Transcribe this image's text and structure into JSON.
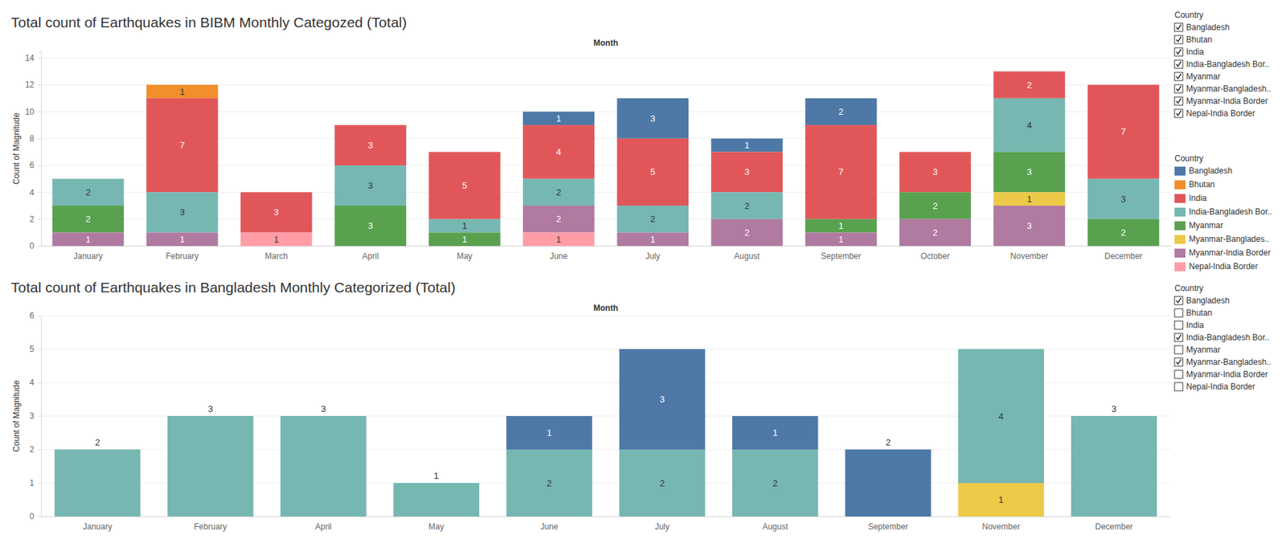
{
  "chart_data": [
    {
      "type": "bar",
      "stacked": true,
      "data_labels": true,
      "grid": true,
      "legend": "right",
      "title": "Total count of Earthquakes in BIBM Monthly Categozed (Total)",
      "x_label": "Month",
      "y_label": "Count of Magnitude",
      "legend_title": "Country",
      "categories": [
        "January",
        "February",
        "March",
        "April",
        "May",
        "June",
        "July",
        "August",
        "September",
        "October",
        "November",
        "December"
      ],
      "ylim": [
        0,
        14.5
      ],
      "yticks": [
        0,
        2,
        4,
        6,
        8,
        10,
        12,
        14
      ],
      "series": [
        {
          "name": "Bangladesh",
          "color": "#4e79a7",
          "values": [
            null,
            null,
            null,
            null,
            null,
            1,
            3,
            1,
            2,
            null,
            null,
            null
          ]
        },
        {
          "name": "Bhutan",
          "color": "#f28e2b",
          "values": [
            null,
            1,
            null,
            null,
            null,
            null,
            null,
            null,
            null,
            null,
            null,
            null
          ]
        },
        {
          "name": "India",
          "color": "#e15759",
          "values": [
            null,
            7,
            3,
            3,
            5,
            4,
            5,
            3,
            7,
            3,
            2,
            7
          ]
        },
        {
          "name": "India-Bangladesh Bor..",
          "color": "#76b7b2",
          "values": [
            2,
            3,
            null,
            3,
            1,
            2,
            2,
            2,
            null,
            null,
            4,
            3
          ]
        },
        {
          "name": "Myanmar",
          "color": "#59a14f",
          "values": [
            2,
            null,
            null,
            3,
            1,
            null,
            null,
            null,
            1,
            2,
            3,
            2
          ]
        },
        {
          "name": "Myanmar-Banglades..",
          "color": "#edc948",
          "values": [
            null,
            null,
            null,
            null,
            null,
            null,
            null,
            null,
            null,
            null,
            1,
            null
          ]
        },
        {
          "name": "Myanmar-India Border",
          "color": "#b07aa1",
          "values": [
            1,
            1,
            null,
            null,
            null,
            2,
            1,
            2,
            1,
            2,
            3,
            null
          ]
        },
        {
          "name": "Nepal-India Border",
          "color": "#ff9da7",
          "values": [
            null,
            null,
            1,
            null,
            null,
            1,
            null,
            null,
            null,
            null,
            null,
            null
          ]
        }
      ]
    },
    {
      "type": "bar",
      "stacked": true,
      "data_labels": true,
      "grid": true,
      "title": "Total count of Earthquakes in Bangladesh Monthly Categorized (Total)",
      "x_label": "Month",
      "y_label": "Count of Magnitude",
      "categories": [
        "January",
        "February",
        "April",
        "May",
        "June",
        "July",
        "August",
        "September",
        "November",
        "December"
      ],
      "ylim": [
        0,
        6
      ],
      "yticks": [
        0,
        1,
        2,
        3,
        4,
        5,
        6
      ],
      "series": [
        {
          "color": "#4e79a7",
          "values": [
            null,
            null,
            null,
            null,
            1,
            3,
            1,
            2,
            null,
            null
          ]
        },
        {
          "color": "#76b7b2",
          "values": [
            2,
            3,
            3,
            1,
            2,
            2,
            2,
            null,
            4,
            3
          ]
        },
        {
          "color": "#edc948",
          "values": [
            null,
            null,
            null,
            null,
            null,
            null,
            null,
            null,
            1,
            null
          ]
        }
      ]
    }
  ],
  "filters": [
    {
      "title": "Country",
      "items": [
        "Bangladesh",
        "Bhutan",
        "India",
        "India-Bangladesh Bor..",
        "Myanmar",
        "Myanmar-Bangladesh..",
        "Myanmar-India Border",
        "Nepal-India Border"
      ],
      "checked": [
        true,
        true,
        true,
        true,
        true,
        true,
        true,
        true
      ]
    },
    {
      "title": "Country",
      "items": [
        "Bangladesh",
        "Bhutan",
        "India",
        "India-Bangladesh Bor..",
        "Myanmar",
        "Myanmar-Bangladesh..",
        "Myanmar-India Border",
        "Nepal-India Border"
      ],
      "checked": [
        true,
        false,
        false,
        true,
        false,
        true,
        false,
        false
      ]
    }
  ]
}
